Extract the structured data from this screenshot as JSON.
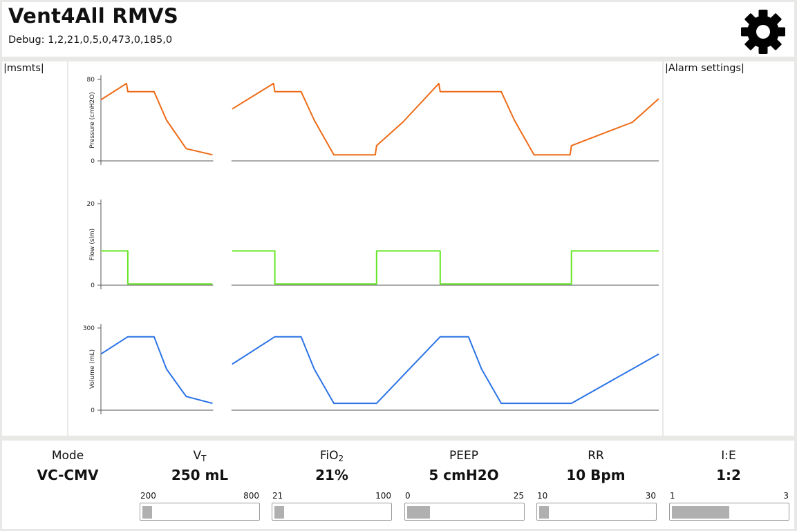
{
  "header": {
    "title": "Vent4All RMVS",
    "debug": "Debug: 1,2,21,0,5,0,473,0,185,0",
    "settings_icon": "gear-icon"
  },
  "left_panel": {
    "label": "|msmts|"
  },
  "right_panel": {
    "label": "|Alarm settings|"
  },
  "colors": {
    "pressure": "#ee6a15",
    "flow": "#66e626",
    "volume": "#2a73e6"
  },
  "chart_data": [
    {
      "type": "line",
      "ylabel": "Pressure (cmH2O)",
      "yticks": [
        "80",
        "0"
      ],
      "ylim": [
        0,
        80
      ],
      "xlim": [
        0,
        8.5
      ],
      "gap": [
        1.7,
        2.0
      ],
      "series": [
        {
          "color": "#ee6a15",
          "x": [
            0,
            0.39,
            0.41,
            0.81,
            1.0,
            1.3,
            1.7,
            2.0,
            2.63,
            2.65,
            3.05,
            3.25,
            3.55,
            4.18,
            4.2,
            4.6,
            5.15,
            5.17,
            6.1,
            6.3,
            6.6,
            7.15,
            7.17,
            8.1,
            8.5
          ],
          "y": [
            60,
            76,
            68,
            68,
            40,
            12,
            6,
            51,
            76,
            68,
            68,
            40,
            6,
            6,
            15,
            38,
            76,
            68,
            68,
            40,
            6,
            6,
            15,
            38,
            61
          ]
        }
      ]
    },
    {
      "type": "line",
      "ylabel": "Flow (slm)",
      "yticks": [
        "20",
        "0"
      ],
      "ylim": [
        0,
        20
      ],
      "xlim": [
        0,
        8.5
      ],
      "gap": [
        1.7,
        2.0
      ],
      "series": [
        {
          "color": "#66e626",
          "x": [
            0,
            0.41,
            0.41,
            1.7,
            2.0,
            2.65,
            2.65,
            4.2,
            4.2,
            5.17,
            5.17,
            6.6,
            7.17,
            7.17,
            8.5
          ],
          "y": [
            8.4,
            8.4,
            0.3,
            0.3,
            8.4,
            8.4,
            0.3,
            0.3,
            8.4,
            8.4,
            0.3,
            0.3,
            0.3,
            8.4,
            8.4
          ]
        }
      ]
    },
    {
      "type": "line",
      "ylabel": "Volume (mL)",
      "yticks": [
        "300",
        "0"
      ],
      "ylim": [
        0,
        300
      ],
      "xlim": [
        0,
        8.5
      ],
      "gap": [
        1.7,
        2.0
      ],
      "series": [
        {
          "color": "#2a73e6",
          "x": [
            0,
            0.41,
            0.81,
            1.0,
            1.3,
            1.7,
            2.0,
            2.65,
            3.05,
            3.25,
            3.55,
            4.2,
            5.17,
            5.6,
            5.8,
            6.1,
            7.17,
            8.5
          ],
          "y": [
            205,
            268,
            268,
            150,
            50,
            25,
            168,
            268,
            268,
            150,
            25,
            25,
            268,
            268,
            150,
            25,
            25,
            205
          ]
        }
      ]
    }
  ],
  "parameters": [
    {
      "label": "Mode",
      "value": "VC-CMV"
    },
    {
      "label": "V",
      "sub": "T",
      "value": "250 mL",
      "min": "200",
      "max": "800",
      "level": 0.08
    },
    {
      "label": "FiO",
      "sub": "2",
      "value": "21%",
      "min": "21",
      "max": "100",
      "level": 0.0
    },
    {
      "label": "PEEP",
      "value": "5 cmH2O",
      "min": "0",
      "max": "25",
      "level": 0.2
    },
    {
      "label": "RR",
      "value": "10 Bpm",
      "min": "10",
      "max": "30",
      "level": 0.0
    },
    {
      "label": "I:E",
      "value": "1:2",
      "min": "1",
      "max": "3",
      "level": 0.5
    }
  ]
}
